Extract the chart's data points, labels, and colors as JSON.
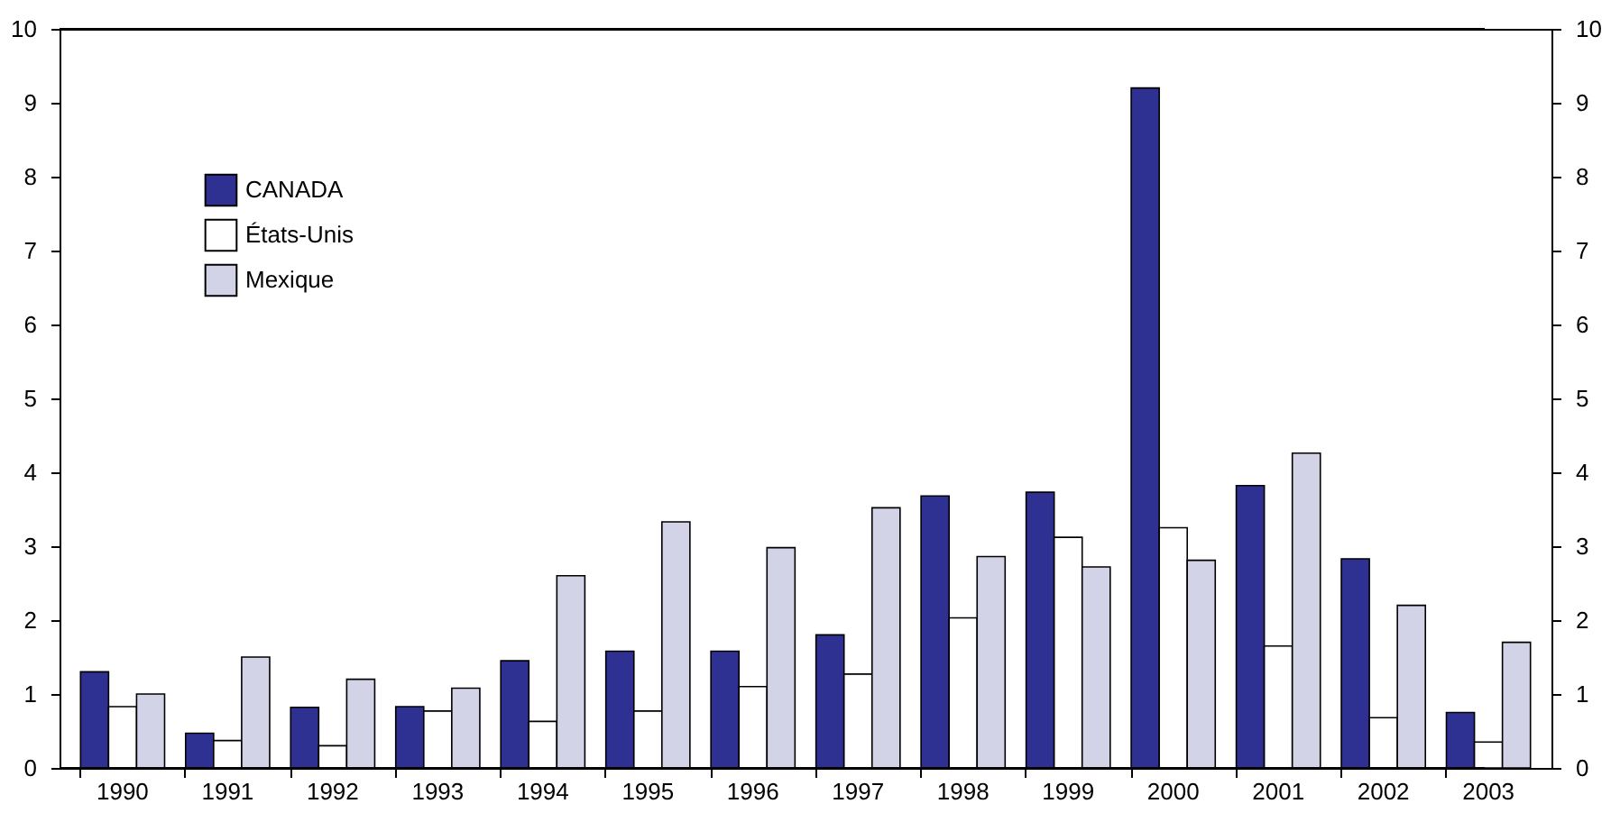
{
  "chart_data": {
    "type": "bar",
    "categories": [
      "1990",
      "1991",
      "1992",
      "1993",
      "1994",
      "1995",
      "1996",
      "1997",
      "1998",
      "1999",
      "2000",
      "2001",
      "2002",
      "2003"
    ],
    "series": [
      {
        "name": "CANADA",
        "color": "#2e3192",
        "values": [
          1.3,
          0.47,
          0.82,
          0.83,
          1.45,
          1.58,
          1.58,
          1.8,
          3.68,
          3.73,
          9.2,
          3.82,
          2.83,
          0.75
        ]
      },
      {
        "name": "États-Unis",
        "color": "#ffffff",
        "values": [
          0.83,
          0.37,
          0.3,
          0.77,
          0.63,
          0.77,
          1.1,
          1.27,
          2.03,
          3.12,
          3.25,
          1.65,
          0.68,
          0.35
        ]
      },
      {
        "name": "Mexique",
        "color": "#d3d3e8",
        "values": [
          1.0,
          1.5,
          1.2,
          1.08,
          2.6,
          3.33,
          2.98,
          3.52,
          2.86,
          2.72,
          2.81,
          4.26,
          2.2,
          1.7
        ]
      }
    ],
    "ylim": [
      0,
      10
    ],
    "yticks": [
      0,
      1,
      2,
      3,
      4,
      5,
      6,
      7,
      8,
      9,
      10
    ],
    "y2lim": [
      0,
      10
    ],
    "y2ticks": [
      0,
      1,
      2,
      3,
      4,
      5,
      6,
      7,
      8,
      9,
      10
    ],
    "legend": "top left",
    "grid": false
  }
}
